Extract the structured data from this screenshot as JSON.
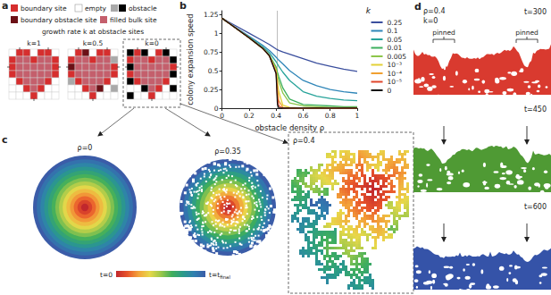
{
  "panel_labels": [
    "a",
    "b",
    "c",
    "d"
  ],
  "panel_a": {
    "legend": {
      "boundary_site": "boundary site",
      "empty": "empty",
      "obstacle": "obstacle",
      "boundary_obstacle_site": "boundary obstacle site",
      "filled_bulk_site": "filled bulk site"
    },
    "caption": "growth rate k at obstacle sites",
    "diagrams": [
      "k=1",
      "k=0.5",
      "k=0"
    ]
  },
  "chart_data": {
    "type": "line",
    "xlabel": "obstacle density ρ",
    "ylabel": "colony expansion speed",
    "legend_title": "k",
    "legend": "right",
    "grid": false,
    "xlim": [
      0,
      1
    ],
    "xticks": [
      0,
      0.2,
      0.4,
      0.6,
      0.8,
      1
    ],
    "ylim": [
      0,
      1.3
    ],
    "yticks": [
      0,
      0.25,
      0.5,
      0.75,
      1,
      1.25
    ],
    "threshold": 0.407,
    "x": [
      0,
      0.1,
      0.2,
      0.3,
      0.35,
      0.4,
      0.41,
      0.42,
      0.45,
      0.5,
      0.6,
      0.7,
      0.8,
      0.9,
      1
    ],
    "series": [
      {
        "name": "0.25",
        "color": "#3b4f9e",
        "values": [
          1.2,
          1.1,
          1.0,
          0.9,
          0.85,
          0.79,
          0.78,
          0.77,
          0.75,
          0.72,
          0.66,
          0.6,
          0.56,
          0.52,
          0.49
        ]
      },
      {
        "name": "0.1",
        "color": "#2f86b8",
        "values": [
          1.2,
          1.08,
          0.96,
          0.84,
          0.77,
          0.68,
          0.66,
          0.64,
          0.59,
          0.5,
          0.37,
          0.3,
          0.25,
          0.22,
          0.2
        ]
      },
      {
        "name": "0.05",
        "color": "#27a39a",
        "values": [
          1.2,
          1.07,
          0.95,
          0.82,
          0.74,
          0.62,
          0.59,
          0.56,
          0.48,
          0.37,
          0.22,
          0.16,
          0.13,
          0.11,
          0.1
        ]
      },
      {
        "name": "0.01",
        "color": "#3daf5e",
        "values": [
          1.2,
          1.07,
          0.94,
          0.8,
          0.71,
          0.55,
          0.48,
          0.42,
          0.27,
          0.12,
          0.05,
          0.04,
          0.03,
          0.02,
          0.02
        ]
      },
      {
        "name": "0.005",
        "color": "#8dc64a",
        "values": [
          1.2,
          1.07,
          0.94,
          0.8,
          0.7,
          0.53,
          0.44,
          0.36,
          0.2,
          0.07,
          0.03,
          0.02,
          0.01,
          0.01,
          0.01
        ]
      },
      {
        "name": "10⁻³",
        "color": "#e3d136",
        "values": [
          1.2,
          1.07,
          0.94,
          0.8,
          0.7,
          0.5,
          0.36,
          0.22,
          0.04,
          0.01,
          0,
          0,
          0,
          0,
          0
        ]
      },
      {
        "name": "10⁻⁴",
        "color": "#f0a030",
        "values": [
          1.2,
          1.07,
          0.94,
          0.8,
          0.7,
          0.48,
          0.25,
          0.1,
          0.01,
          0,
          0,
          0,
          0,
          0,
          0
        ]
      },
      {
        "name": "10⁻⁵",
        "color": "#e0452a",
        "values": [
          1.2,
          1.07,
          0.94,
          0.8,
          0.7,
          0.47,
          0.15,
          0.03,
          0,
          0,
          0,
          0,
          0,
          0,
          0
        ]
      },
      {
        "name": "0",
        "color": "#111111",
        "values": [
          1.2,
          1.07,
          0.94,
          0.8,
          0.7,
          0.46,
          0.05,
          0,
          0,
          0,
          0,
          0,
          0,
          0,
          0
        ]
      }
    ]
  },
  "panel_c": {
    "clusters": [
      "ρ=0",
      "ρ=0.35",
      "ρ=0.4"
    ],
    "colorbar": {
      "start": "t=0",
      "end": "t=t",
      "end_subscript": "final"
    }
  },
  "panel_d": {
    "title": "ρ=0.4",
    "subtitle": "k=0",
    "frames": [
      "t=300",
      "t=450",
      "t=600"
    ],
    "annotations": [
      "pinned",
      "pinned"
    ]
  }
}
